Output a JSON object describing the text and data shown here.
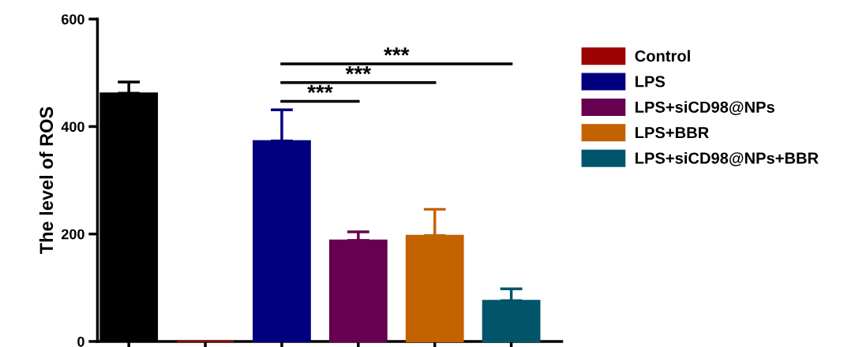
{
  "chart_data": {
    "type": "bar",
    "ylabel": "The level of ROS",
    "categories": [
      null,
      null,
      null,
      null,
      null,
      null
    ],
    "series": [
      {
        "color": "#000000",
        "values": [
          462,
          null,
          null,
          null,
          null,
          null
        ],
        "errors": [
          21,
          null,
          null,
          null,
          null,
          null
        ]
      },
      {
        "name": "Control",
        "color": "#9c0000",
        "values": [
          null,
          0,
          null,
          null,
          null,
          null
        ],
        "errors": [
          null,
          null,
          null,
          null,
          null,
          null
        ]
      },
      {
        "name": "LPS",
        "color": "#00007f",
        "values": [
          null,
          null,
          373,
          null,
          null,
          null
        ],
        "errors": [
          null,
          null,
          58,
          null,
          null,
          null
        ]
      },
      {
        "name": "LPS+siCD98@NPs",
        "color": "#66004f",
        "values": [
          null,
          null,
          null,
          188,
          null,
          null
        ],
        "errors": [
          null,
          null,
          null,
          16,
          null,
          null
        ]
      },
      {
        "name": "LPS+BBR",
        "color": "#c46200",
        "values": [
          null,
          null,
          null,
          null,
          197,
          null
        ],
        "errors": [
          null,
          null,
          null,
          null,
          49,
          null
        ]
      },
      {
        "name": "LPS+siCD98@NPs+BBR",
        "color": "#00556a",
        "values": [
          null,
          null,
          null,
          null,
          null,
          76
        ],
        "errors": [
          null,
          null,
          null,
          null,
          null,
          22
        ]
      }
    ],
    "annotations": [
      "***",
      "***",
      "***"
    ],
    "ylim": [
      0,
      600
    ],
    "yticks": [
      0,
      200,
      400,
      600
    ],
    "grid": false,
    "legend": "right"
  }
}
